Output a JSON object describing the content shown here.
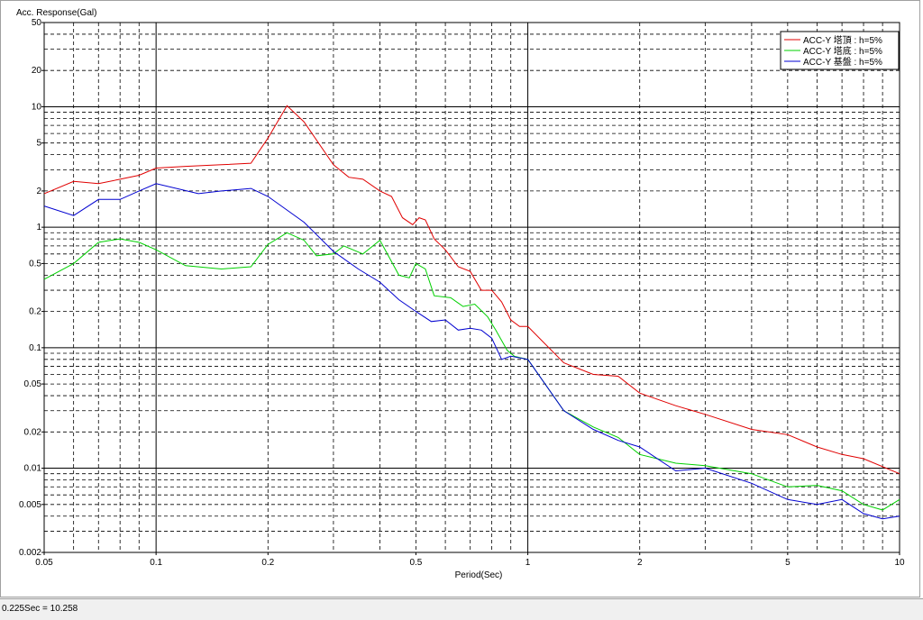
{
  "chart_data": {
    "type": "line",
    "ylabel": "Acc. Response(Gal)",
    "xlabel": "Period(Sec)",
    "xscale": "log",
    "yscale": "log",
    "grid": true,
    "legend": "upper right",
    "xlim": [
      0.05,
      10
    ],
    "ylim": [
      0.002,
      50
    ],
    "xticks": [
      0.05,
      0.1,
      0.2,
      0.5,
      1,
      2,
      5,
      10
    ],
    "yticks": [
      0.002,
      0.005,
      0.01,
      0.02,
      0.05,
      0.1,
      0.2,
      0.5,
      1,
      2,
      5,
      10,
      20,
      50
    ],
    "series": [
      {
        "name": "ACC-Y 塔頂 : h=5%",
        "color": "#e00000",
        "x": [
          0.05,
          0.06,
          0.07,
          0.08,
          0.09,
          0.1,
          0.12,
          0.15,
          0.18,
          0.2,
          0.225,
          0.25,
          0.3,
          0.33,
          0.36,
          0.4,
          0.43,
          0.46,
          0.49,
          0.51,
          0.53,
          0.56,
          0.6,
          0.65,
          0.7,
          0.75,
          0.8,
          0.85,
          0.9,
          0.95,
          1.0,
          1.25,
          1.5,
          1.75,
          2,
          2.5,
          3,
          4,
          5,
          6,
          7,
          8,
          10
        ],
        "values": [
          1.9,
          2.4,
          2.3,
          2.5,
          2.7,
          3.1,
          3.2,
          3.3,
          3.4,
          5.5,
          10.2,
          7.5,
          3.3,
          2.6,
          2.5,
          2.0,
          1.8,
          1.2,
          1.05,
          1.2,
          1.15,
          0.8,
          0.65,
          0.47,
          0.43,
          0.3,
          0.3,
          0.24,
          0.17,
          0.15,
          0.15,
          0.075,
          0.06,
          0.058,
          0.042,
          0.033,
          0.028,
          0.021,
          0.019,
          0.015,
          0.013,
          0.012,
          0.009
        ]
      },
      {
        "name": "ACC-Y 塔底 : h=5%",
        "color": "#00d000",
        "x": [
          0.05,
          0.06,
          0.07,
          0.08,
          0.09,
          0.1,
          0.12,
          0.15,
          0.18,
          0.2,
          0.225,
          0.25,
          0.27,
          0.3,
          0.32,
          0.36,
          0.4,
          0.45,
          0.48,
          0.5,
          0.53,
          0.56,
          0.62,
          0.67,
          0.72,
          0.78,
          0.82,
          0.88,
          0.92,
          1.0,
          1.25,
          1.5,
          1.75,
          2,
          2.5,
          3,
          4,
          5,
          6,
          7,
          8,
          9,
          10
        ],
        "values": [
          0.37,
          0.5,
          0.75,
          0.8,
          0.75,
          0.65,
          0.48,
          0.45,
          0.47,
          0.72,
          0.9,
          0.78,
          0.58,
          0.6,
          0.7,
          0.6,
          0.78,
          0.4,
          0.38,
          0.5,
          0.45,
          0.27,
          0.26,
          0.22,
          0.23,
          0.18,
          0.14,
          0.095,
          0.085,
          0.08,
          0.03,
          0.022,
          0.018,
          0.013,
          0.011,
          0.0105,
          0.009,
          0.007,
          0.0072,
          0.0065,
          0.005,
          0.0045,
          0.0055
        ]
      },
      {
        "name": "ACC-Y 基盤 : h=5%",
        "color": "#0000d0",
        "x": [
          0.05,
          0.06,
          0.07,
          0.08,
          0.09,
          0.1,
          0.13,
          0.15,
          0.18,
          0.2,
          0.25,
          0.3,
          0.35,
          0.4,
          0.45,
          0.5,
          0.55,
          0.6,
          0.65,
          0.7,
          0.75,
          0.8,
          0.85,
          0.9,
          1.0,
          1.25,
          1.5,
          1.75,
          2,
          2.5,
          3,
          4,
          5,
          6,
          7,
          8,
          9,
          10
        ],
        "values": [
          1.5,
          1.25,
          1.7,
          1.7,
          2.0,
          2.3,
          1.9,
          2.0,
          2.1,
          1.8,
          1.1,
          0.63,
          0.45,
          0.35,
          0.25,
          0.2,
          0.165,
          0.17,
          0.14,
          0.145,
          0.14,
          0.12,
          0.08,
          0.085,
          0.08,
          0.03,
          0.021,
          0.017,
          0.015,
          0.0095,
          0.01,
          0.0075,
          0.0055,
          0.005,
          0.0055,
          0.0042,
          0.0038,
          0.004
        ]
      }
    ]
  },
  "status": "0.225Sec = 10.258"
}
